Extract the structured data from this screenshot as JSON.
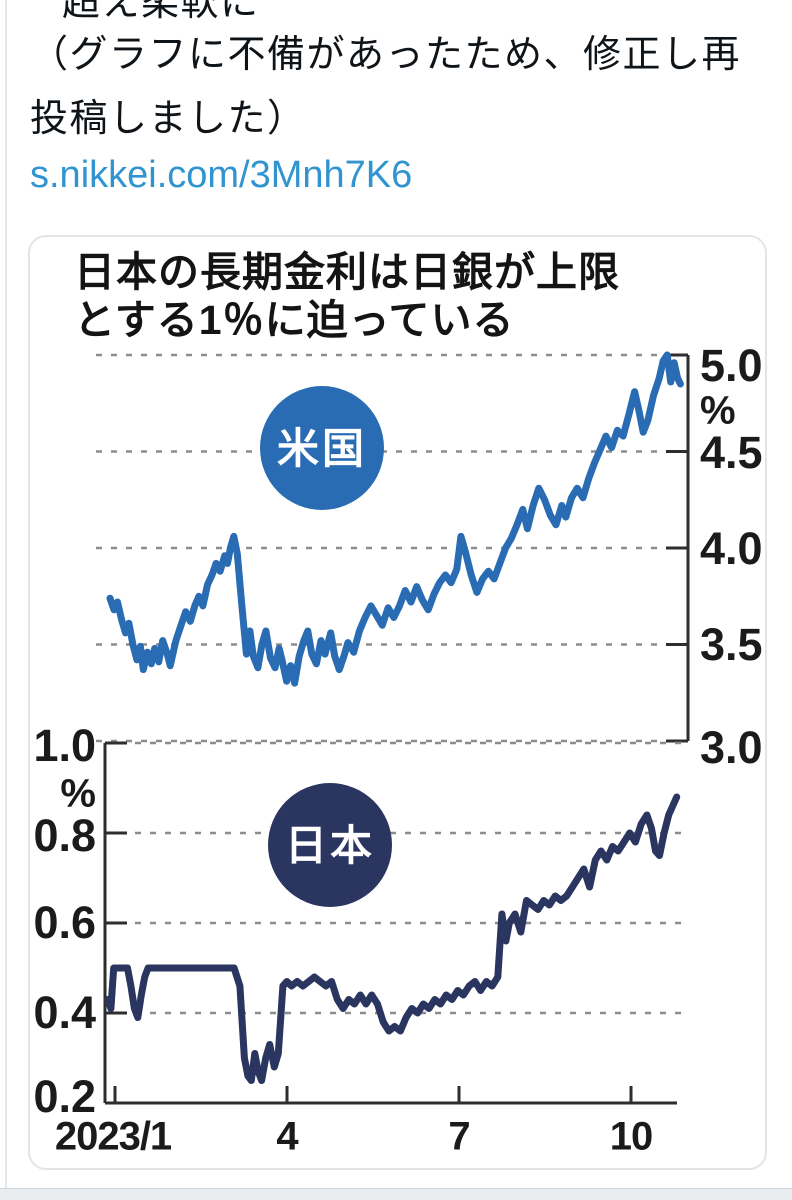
{
  "post": {
    "clipped_line": "超え柔軟に",
    "body_line1": "（グラフに不備があったため、修正し再",
    "body_line2": "投稿しました）",
    "link": "s.nikkei.com/3Mnh7K6"
  },
  "chart": {
    "title_line1": "日本の長期金利は日銀が上限",
    "title_line2": "とする1％に迫っている",
    "us_label": "米国",
    "jp_label": "日本",
    "colors": {
      "us_line": "#2a6cb4",
      "jp_line": "#2a3560",
      "link": "#3094d1",
      "grid": "#8c8c8c",
      "axis": "#2e2e2e"
    },
    "us_axis": {
      "unit": "%",
      "ticks": [
        "5.0",
        "4.5",
        "4.0",
        "3.5",
        "3.0"
      ]
    },
    "jp_axis": {
      "unit": "%",
      "ticks": [
        "1.0",
        "0.8",
        "0.6",
        "0.4",
        "0.2"
      ]
    },
    "x_axis": {
      "ticks": [
        "2023/1",
        "4",
        "7",
        "10"
      ]
    }
  },
  "chart_data": [
    {
      "type": "line",
      "title": "日本の長期金利は日銀が上限とする1％に迫っている",
      "series_name": "米国",
      "ylabel": "%",
      "ylim": [
        3.0,
        5.0
      ],
      "yticks": [
        5.0,
        4.5,
        4.0,
        3.5,
        3.0
      ],
      "x_unit": "months since 2023/1",
      "xticks": [
        0,
        3,
        6,
        9
      ],
      "xtick_labels": [
        "2023/1",
        "4",
        "7",
        "10"
      ],
      "legend_position": "bubble-on-plot",
      "grid": "dashed-horizontal",
      "points": [
        [
          0,
          3.74
        ],
        [
          0.07,
          3.68
        ],
        [
          0.13,
          3.72
        ],
        [
          0.2,
          3.63
        ],
        [
          0.27,
          3.56
        ],
        [
          0.33,
          3.61
        ],
        [
          0.4,
          3.5
        ],
        [
          0.47,
          3.42
        ],
        [
          0.53,
          3.49
        ],
        [
          0.58,
          3.37
        ],
        [
          0.65,
          3.46
        ],
        [
          0.72,
          3.4
        ],
        [
          0.78,
          3.48
        ],
        [
          0.85,
          3.41
        ],
        [
          0.92,
          3.52
        ],
        [
          1,
          3.45
        ],
        [
          1.05,
          3.39
        ],
        [
          1.15,
          3.52
        ],
        [
          1.25,
          3.61
        ],
        [
          1.32,
          3.67
        ],
        [
          1.4,
          3.62
        ],
        [
          1.48,
          3.7
        ],
        [
          1.55,
          3.75
        ],
        [
          1.62,
          3.7
        ],
        [
          1.7,
          3.81
        ],
        [
          1.78,
          3.86
        ],
        [
          1.85,
          3.92
        ],
        [
          1.92,
          3.88
        ],
        [
          2,
          3.96
        ],
        [
          2.05,
          3.92
        ],
        [
          2.1,
          4.0
        ],
        [
          2.16,
          4.06
        ],
        [
          2.22,
          3.97
        ],
        [
          2.3,
          3.7
        ],
        [
          2.38,
          3.45
        ],
        [
          2.44,
          3.57
        ],
        [
          2.5,
          3.44
        ],
        [
          2.58,
          3.38
        ],
        [
          2.65,
          3.5
        ],
        [
          2.72,
          3.57
        ],
        [
          2.8,
          3.43
        ],
        [
          2.88,
          3.38
        ],
        [
          2.95,
          3.48
        ],
        [
          3,
          3.42
        ],
        [
          3.08,
          3.31
        ],
        [
          3.15,
          3.39
        ],
        [
          3.22,
          3.3
        ],
        [
          3.3,
          3.44
        ],
        [
          3.38,
          3.52
        ],
        [
          3.45,
          3.57
        ],
        [
          3.52,
          3.45
        ],
        [
          3.6,
          3.4
        ],
        [
          3.68,
          3.52
        ],
        [
          3.75,
          3.45
        ],
        [
          3.85,
          3.56
        ],
        [
          3.92,
          3.44
        ],
        [
          4,
          3.37
        ],
        [
          4.08,
          3.44
        ],
        [
          4.15,
          3.51
        ],
        [
          4.25,
          3.46
        ],
        [
          4.35,
          3.57
        ],
        [
          4.45,
          3.64
        ],
        [
          4.55,
          3.7
        ],
        [
          4.65,
          3.65
        ],
        [
          4.75,
          3.6
        ],
        [
          4.85,
          3.69
        ],
        [
          4.95,
          3.64
        ],
        [
          5.05,
          3.7
        ],
        [
          5.15,
          3.78
        ],
        [
          5.25,
          3.72
        ],
        [
          5.35,
          3.8
        ],
        [
          5.45,
          3.73
        ],
        [
          5.55,
          3.68
        ],
        [
          5.65,
          3.76
        ],
        [
          5.75,
          3.82
        ],
        [
          5.85,
          3.86
        ],
        [
          5.95,
          3.82
        ],
        [
          6.05,
          3.89
        ],
        [
          6.12,
          4.06
        ],
        [
          6.2,
          3.98
        ],
        [
          6.3,
          3.86
        ],
        [
          6.4,
          3.77
        ],
        [
          6.5,
          3.84
        ],
        [
          6.6,
          3.88
        ],
        [
          6.7,
          3.84
        ],
        [
          6.8,
          3.92
        ],
        [
          6.9,
          4.0
        ],
        [
          7,
          4.05
        ],
        [
          7.1,
          4.12
        ],
        [
          7.2,
          4.2
        ],
        [
          7.28,
          4.1
        ],
        [
          7.38,
          4.22
        ],
        [
          7.48,
          4.31
        ],
        [
          7.58,
          4.25
        ],
        [
          7.68,
          4.17
        ],
        [
          7.78,
          4.12
        ],
        [
          7.88,
          4.22
        ],
        [
          7.95,
          4.16
        ],
        [
          8.05,
          4.26
        ],
        [
          8.15,
          4.31
        ],
        [
          8.25,
          4.26
        ],
        [
          8.35,
          4.36
        ],
        [
          8.45,
          4.44
        ],
        [
          8.55,
          4.51
        ],
        [
          8.65,
          4.58
        ],
        [
          8.75,
          4.52
        ],
        [
          8.85,
          4.61
        ],
        [
          8.95,
          4.58
        ],
        [
          9.05,
          4.69
        ],
        [
          9.15,
          4.81
        ],
        [
          9.22,
          4.72
        ],
        [
          9.3,
          4.6
        ],
        [
          9.38,
          4.66
        ],
        [
          9.48,
          4.79
        ],
        [
          9.58,
          4.88
        ],
        [
          9.65,
          4.97
        ],
        [
          9.72,
          5.0
        ],
        [
          9.78,
          4.86
        ],
        [
          9.84,
          4.96
        ],
        [
          9.9,
          4.88
        ],
        [
          9.95,
          4.85
        ]
      ]
    },
    {
      "type": "line",
      "title": "日本の長期金利は日銀が上限とする1％に迫っている",
      "series_name": "日本",
      "ylabel": "%",
      "ylim": [
        0.2,
        1.0
      ],
      "yticks": [
        1.0,
        0.8,
        0.6,
        0.4,
        0.2
      ],
      "x_unit": "months since 2023/1",
      "xticks": [
        0,
        3,
        6,
        9
      ],
      "xtick_labels": [
        "2023/1",
        "4",
        "7",
        "10"
      ],
      "legend_position": "bubble-on-plot",
      "grid": "dashed-horizontal",
      "points": [
        [
          0,
          0.43
        ],
        [
          0.05,
          0.41
        ],
        [
          0.1,
          0.5
        ],
        [
          0.18,
          0.5
        ],
        [
          0.26,
          0.5
        ],
        [
          0.34,
          0.5
        ],
        [
          0.4,
          0.46
        ],
        [
          0.46,
          0.41
        ],
        [
          0.52,
          0.39
        ],
        [
          0.58,
          0.44
        ],
        [
          0.64,
          0.48
        ],
        [
          0.7,
          0.5
        ],
        [
          0.8,
          0.5
        ],
        [
          0.9,
          0.5
        ],
        [
          1,
          0.5
        ],
        [
          1.15,
          0.5
        ],
        [
          1.3,
          0.5
        ],
        [
          1.45,
          0.5
        ],
        [
          1.6,
          0.5
        ],
        [
          1.75,
          0.5
        ],
        [
          1.9,
          0.5
        ],
        [
          2.05,
          0.5
        ],
        [
          2.2,
          0.5
        ],
        [
          2.3,
          0.46
        ],
        [
          2.38,
          0.3
        ],
        [
          2.44,
          0.26
        ],
        [
          2.5,
          0.25
        ],
        [
          2.56,
          0.31
        ],
        [
          2.62,
          0.27
        ],
        [
          2.68,
          0.25
        ],
        [
          2.75,
          0.3
        ],
        [
          2.82,
          0.33
        ],
        [
          2.9,
          0.28
        ],
        [
          2.97,
          0.31
        ],
        [
          3.05,
          0.46
        ],
        [
          3.12,
          0.47
        ],
        [
          3.2,
          0.46
        ],
        [
          3.3,
          0.47
        ],
        [
          3.4,
          0.46
        ],
        [
          3.5,
          0.47
        ],
        [
          3.6,
          0.48
        ],
        [
          3.7,
          0.47
        ],
        [
          3.8,
          0.46
        ],
        [
          3.9,
          0.47
        ],
        [
          4,
          0.43
        ],
        [
          4.1,
          0.41
        ],
        [
          4.2,
          0.43
        ],
        [
          4.3,
          0.42
        ],
        [
          4.4,
          0.44
        ],
        [
          4.5,
          0.42
        ],
        [
          4.6,
          0.44
        ],
        [
          4.7,
          0.42
        ],
        [
          4.8,
          0.38
        ],
        [
          4.9,
          0.36
        ],
        [
          5,
          0.37
        ],
        [
          5.1,
          0.36
        ],
        [
          5.2,
          0.39
        ],
        [
          5.3,
          0.41
        ],
        [
          5.4,
          0.4
        ],
        [
          5.5,
          0.42
        ],
        [
          5.6,
          0.41
        ],
        [
          5.7,
          0.43
        ],
        [
          5.8,
          0.42
        ],
        [
          5.9,
          0.44
        ],
        [
          6,
          0.43
        ],
        [
          6.1,
          0.45
        ],
        [
          6.2,
          0.44
        ],
        [
          6.3,
          0.46
        ],
        [
          6.4,
          0.47
        ],
        [
          6.5,
          0.45
        ],
        [
          6.6,
          0.47
        ],
        [
          6.7,
          0.46
        ],
        [
          6.8,
          0.48
        ],
        [
          6.87,
          0.62
        ],
        [
          6.94,
          0.56
        ],
        [
          7,
          0.6
        ],
        [
          7.1,
          0.62
        ],
        [
          7.2,
          0.58
        ],
        [
          7.3,
          0.65
        ],
        [
          7.4,
          0.64
        ],
        [
          7.5,
          0.63
        ],
        [
          7.6,
          0.65
        ],
        [
          7.7,
          0.64
        ],
        [
          7.8,
          0.66
        ],
        [
          7.9,
          0.65
        ],
        [
          8,
          0.66
        ],
        [
          8.1,
          0.68
        ],
        [
          8.2,
          0.7
        ],
        [
          8.3,
          0.72
        ],
        [
          8.4,
          0.68
        ],
        [
          8.5,
          0.74
        ],
        [
          8.6,
          0.76
        ],
        [
          8.7,
          0.74
        ],
        [
          8.8,
          0.77
        ],
        [
          8.9,
          0.76
        ],
        [
          9,
          0.78
        ],
        [
          9.1,
          0.8
        ],
        [
          9.2,
          0.78
        ],
        [
          9.3,
          0.82
        ],
        [
          9.4,
          0.84
        ],
        [
          9.48,
          0.81
        ],
        [
          9.55,
          0.76
        ],
        [
          9.62,
          0.75
        ],
        [
          9.7,
          0.8
        ],
        [
          9.78,
          0.84
        ],
        [
          9.85,
          0.86
        ],
        [
          9.92,
          0.88
        ]
      ]
    }
  ]
}
